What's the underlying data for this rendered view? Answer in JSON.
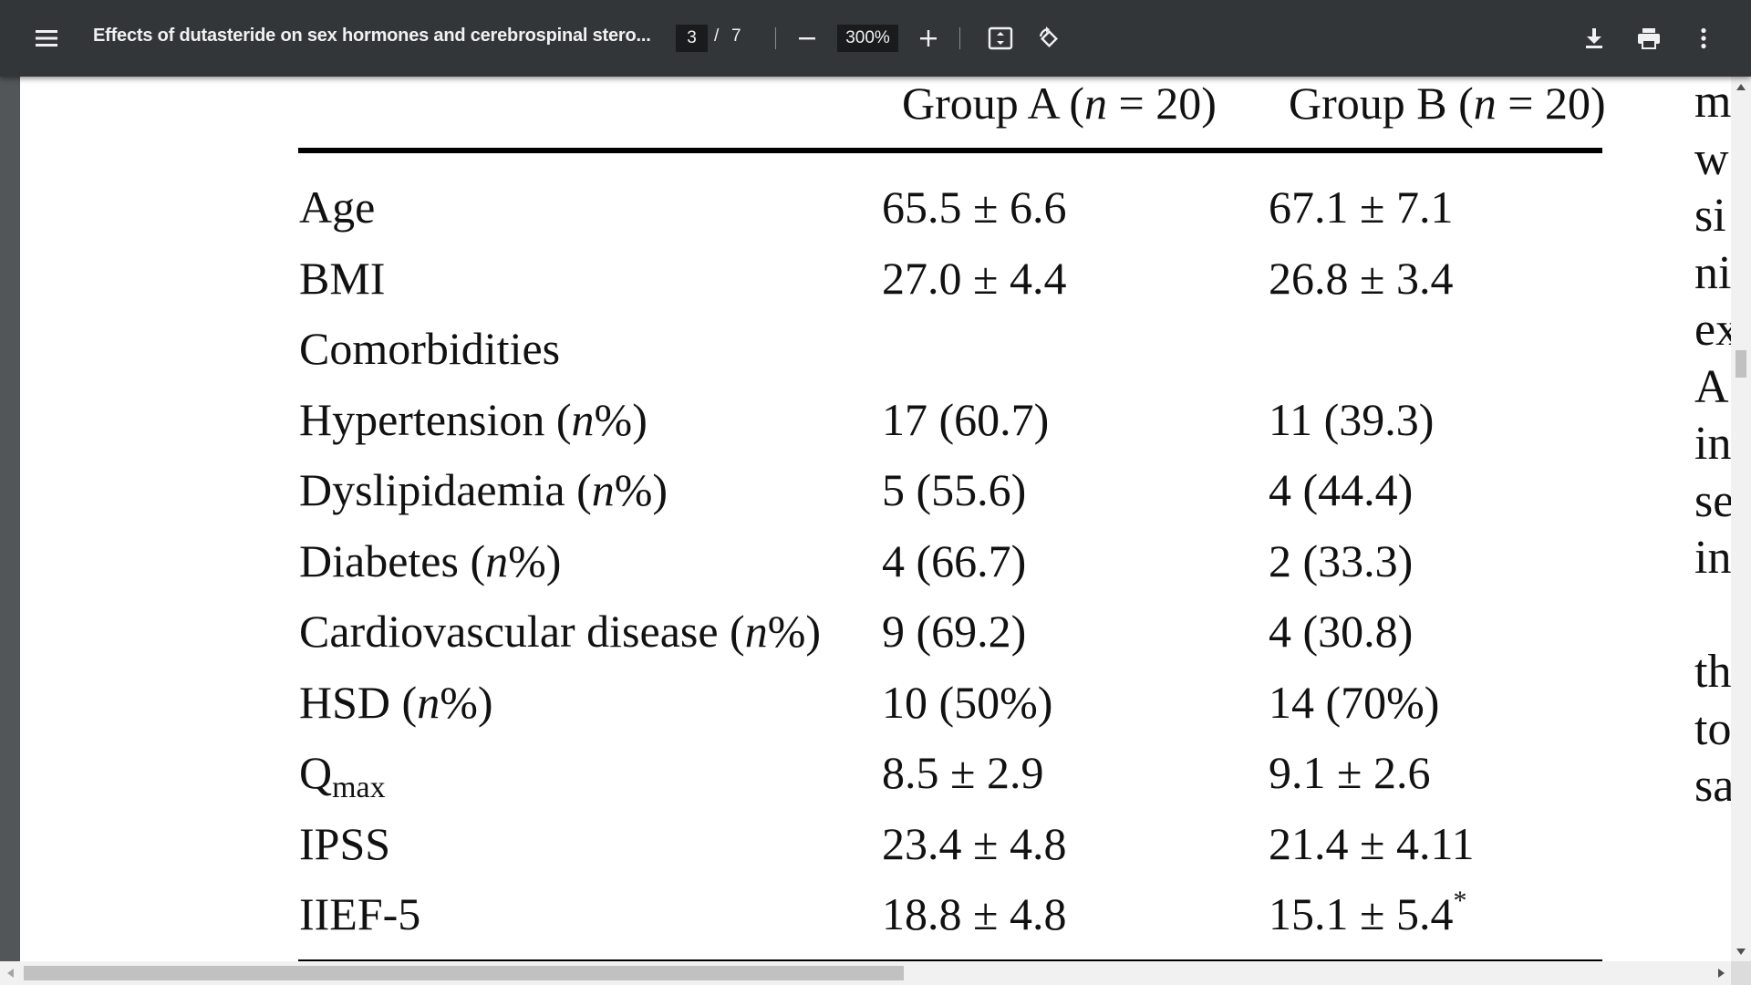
{
  "toolbar": {
    "menu_icon": "menu-icon",
    "title": "Effects of dutasteride on sex hormones and cerebrospinal stero...",
    "page_current": "3",
    "page_separator": "/",
    "page_total": "7",
    "zoom_value": "300%",
    "zoom_out_icon": "minus-icon",
    "zoom_in_icon": "plus-icon",
    "fit_icon": "fit-to-page-icon",
    "rotate_icon": "rotate-icon",
    "download_icon": "download-icon",
    "print_icon": "print-icon",
    "more_icon": "more-vert-icon"
  },
  "table": {
    "headers": {
      "group_a": {
        "name": "Group A",
        "n": "(n = 20)"
      },
      "group_b": {
        "name": "Group B",
        "n": "(n = 20)"
      }
    },
    "rows": [
      {
        "label": "Age",
        "a": "65.5 ± 6.6",
        "b": "67.1 ± 7.1"
      },
      {
        "label": "BMI",
        "a": "27.0 ± 4.4",
        "b": "26.8 ± 3.4"
      },
      {
        "label": "Comorbidities",
        "a": "",
        "b": ""
      },
      {
        "label": "Hypertension",
        "label_suffix": "(n%)",
        "a": "17 (60.7)",
        "b": "11 (39.3)"
      },
      {
        "label": "Dyslipidaemia",
        "label_suffix": "(n%)",
        "a": "5 (55.6)",
        "b": "4 (44.4)"
      },
      {
        "label": "Diabetes",
        "label_suffix": "(n%)",
        "a": "4 (66.7)",
        "b": "2 (33.3)"
      },
      {
        "label": "Cardiovascular disease",
        "label_suffix": "(n%)",
        "a": "9 (69.2)",
        "b": "4 (30.8)"
      },
      {
        "label": "HSD",
        "label_suffix": "(n%)",
        "a": "10 (50%)",
        "b": "14 (70%)"
      },
      {
        "label": "Q",
        "label_sub": "max",
        "a": "8.5 ± 2.9",
        "b": "9.1 ± 2.6"
      },
      {
        "label": "IPSS",
        "a": "23.4 ± 4.8",
        "b": "21.4 ± 4.11"
      },
      {
        "label": "IIEF-5",
        "a": "18.8 ± 4.8",
        "b": "15.1 ± 5.4",
        "b_sup": "*"
      }
    ]
  },
  "side_text": [
    "m",
    "w",
    "si",
    "ni",
    "ex",
    "A",
    "in",
    "se",
    "in",
    "",
    "th",
    "to",
    "sa"
  ]
}
